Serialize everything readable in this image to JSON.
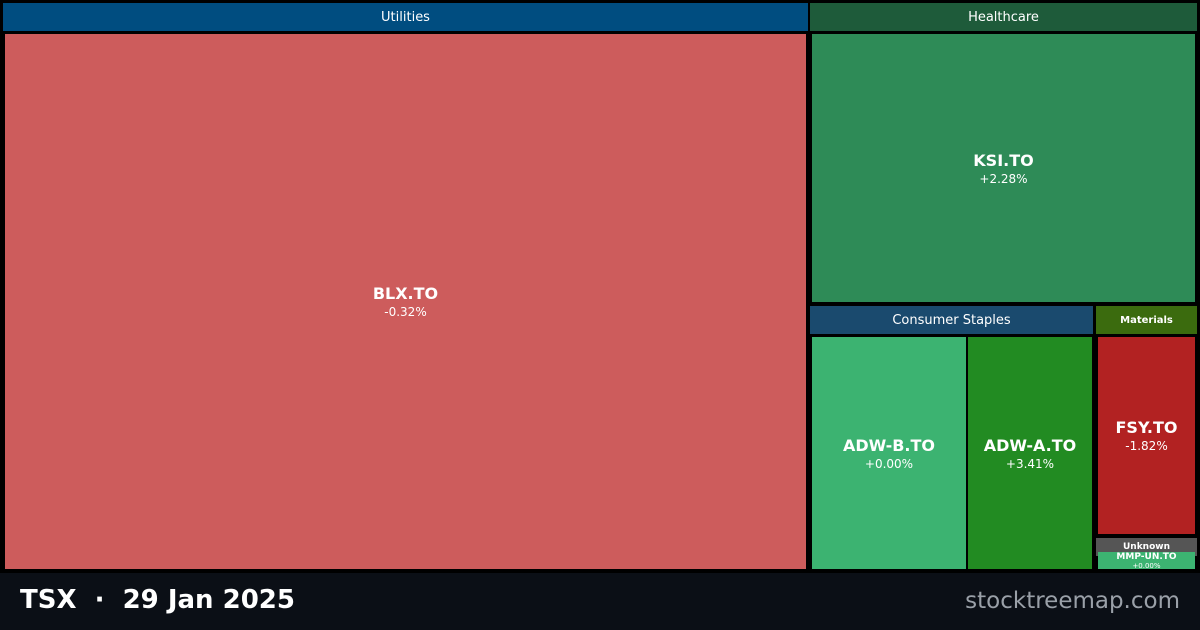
{
  "sectors": [
    {
      "name": "Utilities",
      "stocks": [
        {
          "ticker": "BLX.TO",
          "change": "-0.32%"
        }
      ]
    },
    {
      "name": "Healthcare",
      "stocks": [
        {
          "ticker": "KSI.TO",
          "change": "+2.28%"
        }
      ]
    },
    {
      "name": "Consumer Staples",
      "stocks": [
        {
          "ticker": "ADW-B.TO",
          "change": "+0.00%"
        },
        {
          "ticker": "ADW-A.TO",
          "change": "+3.41%"
        }
      ]
    },
    {
      "name": "Materials",
      "stocks": [
        {
          "ticker": "FSY.TO",
          "change": "-1.82%"
        }
      ]
    },
    {
      "name": "Unknown",
      "stocks": [
        {
          "ticker": "MMP-UN.TO",
          "change": "+0.00%"
        }
      ]
    }
  ],
  "footer": {
    "title": "TSX  ·  29 Jan 2025",
    "site": "stocktreemap.com"
  }
}
